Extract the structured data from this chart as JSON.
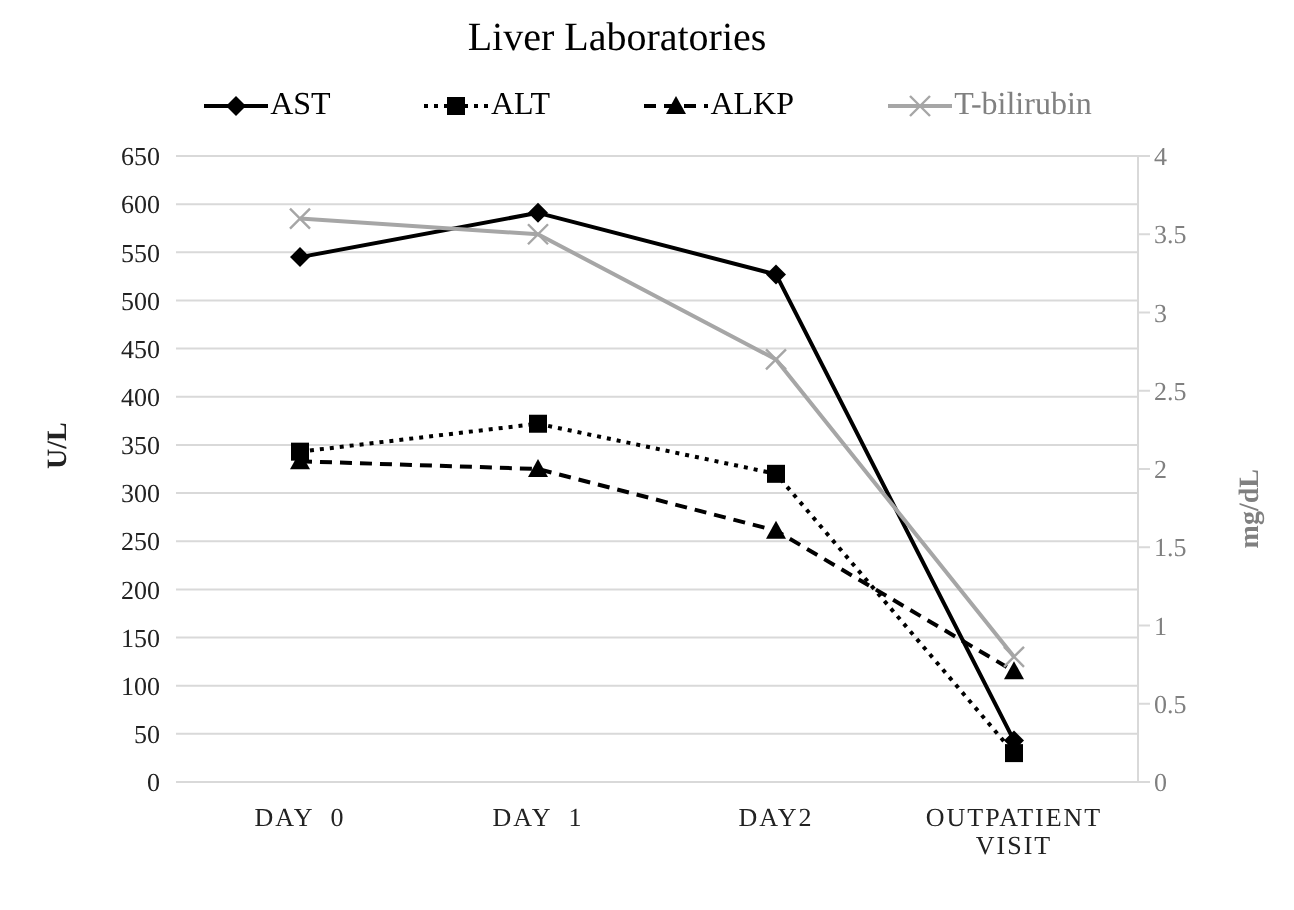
{
  "chart_data": {
    "type": "line",
    "title": "Liver Laboratories",
    "categories": [
      "DAY  0",
      "DAY  1",
      "DAY2",
      "OUTPATIENT VISIT"
    ],
    "series": [
      {
        "name": "AST",
        "color": "#000000",
        "marker": "diamond",
        "line_style": "solid",
        "values": [
          545,
          591,
          527,
          43
        ]
      },
      {
        "name": "ALT",
        "color": "#000000",
        "marker": "square",
        "line_style": "dotted",
        "values": [
          343,
          372,
          320,
          30
        ]
      },
      {
        "name": "ALKP",
        "color": "#000000",
        "marker": "triangle",
        "line_style": "dashed",
        "values": [
          333,
          325,
          261,
          115
        ]
      },
      {
        "name": "T-bilirubin",
        "color": "#a6a6a6",
        "marker": "cross",
        "line_style": "solid",
        "axis": "y2",
        "values": [
          3.6,
          3.5,
          2.7,
          0.8
        ]
      }
    ],
    "ylabel": "U/L",
    "y2label": "mg/dL",
    "ylim": [
      0,
      650
    ],
    "yticks": [
      0,
      50,
      100,
      150,
      200,
      250,
      300,
      350,
      400,
      450,
      500,
      550,
      600,
      650
    ],
    "y2lim": [
      0,
      4
    ],
    "y2ticks": [
      0,
      0.5,
      1,
      1.5,
      2,
      2.5,
      3,
      3.5,
      4
    ],
    "grid": "y",
    "legend": "top"
  }
}
